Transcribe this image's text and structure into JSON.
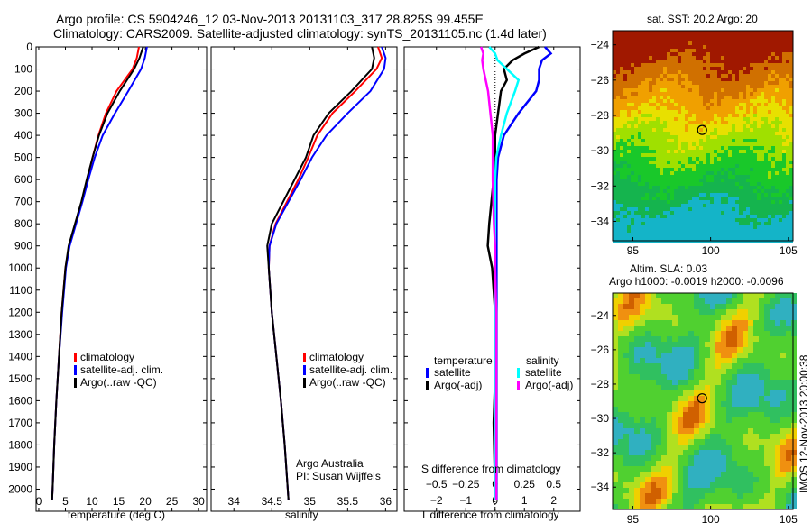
{
  "title_line1": "Argo profile: CS 5904246_12 03-Nov-2013 20131103_317 28.825S 99.455E",
  "title_line2": "Climatology: CARS2009. Satellite-adjusted climatology: synTS_20131105.nc (1.4d later)",
  "colors": {
    "climatology": "#ff0000",
    "satellite": "#0000ff",
    "argo": "#000000",
    "sal_satellite": "#00ffff",
    "sal_argo": "#ff00ff"
  },
  "chart_data": [
    {
      "type": "line",
      "name": "temperature",
      "xlabel": "temperature (deg C)",
      "ylabel": "",
      "xlim": [
        -0.5,
        31.5
      ],
      "ylim": [
        0,
        2100
      ],
      "xticks": [
        0,
        5,
        10,
        15,
        20,
        25,
        30
      ],
      "yticks": [
        0,
        100,
        200,
        300,
        400,
        500,
        600,
        700,
        800,
        900,
        1000,
        1100,
        1200,
        1300,
        1400,
        1500,
        1600,
        1700,
        1800,
        1900,
        2000
      ],
      "legend": [
        "climatology",
        "satellite-adj. clim.",
        "Argo(..raw -QC)"
      ],
      "legend_position": "lower-center",
      "depth": [
        0,
        50,
        100,
        200,
        300,
        400,
        500,
        600,
        700,
        800,
        900,
        1000,
        1200,
        1400,
        1600,
        1800,
        2000,
        2050
      ],
      "series": [
        {
          "name": "climatology",
          "values": [
            18.8,
            18.4,
            17.6,
            14.6,
            12.6,
            11.2,
            10.1,
            9.1,
            8.1,
            6.9,
            5.7,
            5.0,
            4.3,
            3.8,
            3.3,
            2.9,
            2.6,
            2.5
          ]
        },
        {
          "name": "satellite-adj. clim.",
          "values": [
            20.3,
            19.9,
            19.2,
            16.8,
            14.3,
            12.0,
            10.5,
            9.3,
            8.2,
            7.0,
            5.8,
            5.1,
            4.4,
            3.8,
            3.3,
            2.9,
            2.6,
            2.5
          ]
        },
        {
          "name": "Argo(..raw -QC)",
          "values": [
            19.6,
            18.9,
            17.9,
            15.2,
            12.9,
            11.3,
            10.1,
            9.0,
            8.0,
            6.8,
            5.6,
            5.0,
            4.3,
            3.8,
            3.3,
            2.9,
            2.6,
            2.5
          ]
        }
      ]
    },
    {
      "type": "line",
      "name": "salinity",
      "xlabel": "salinity",
      "ylabel": "",
      "xlim": [
        33.7,
        36.15
      ],
      "ylim": [
        0,
        2100
      ],
      "xticks": [
        34,
        34.5,
        35,
        35.5,
        36
      ],
      "legend": [
        "climatology",
        "satellite-adj. clim.",
        "Argo(..raw -QC)"
      ],
      "legend_position": "lower-center",
      "annotation": [
        "Argo Australia",
        "PI: Susan Wijffels"
      ],
      "depth": [
        0,
        50,
        100,
        200,
        300,
        400,
        500,
        600,
        700,
        800,
        900,
        1000,
        1200,
        1400,
        1600,
        1800,
        2000,
        2050
      ],
      "series": [
        {
          "name": "climatology",
          "values": [
            35.9,
            35.95,
            35.88,
            35.6,
            35.3,
            35.1,
            34.98,
            34.85,
            34.7,
            34.55,
            34.47,
            34.46,
            34.5,
            34.56,
            34.62,
            34.67,
            34.71,
            34.72
          ]
        },
        {
          "name": "satellite-adj. clim.",
          "values": [
            35.95,
            36.0,
            35.98,
            35.8,
            35.5,
            35.22,
            35.03,
            34.88,
            34.72,
            34.56,
            34.47,
            34.46,
            34.5,
            34.56,
            34.62,
            34.67,
            34.71,
            34.72
          ]
        },
        {
          "name": "Argo(..raw -QC)",
          "values": [
            35.82,
            35.85,
            35.82,
            35.55,
            35.25,
            35.05,
            34.95,
            34.8,
            34.65,
            34.5,
            34.44,
            34.46,
            34.5,
            34.56,
            34.62,
            34.67,
            34.71,
            34.72
          ]
        }
      ]
    },
    {
      "type": "line",
      "name": "difference",
      "xlabel": "T difference from climatology",
      "x2label": "S difference from climatology",
      "xlim": [
        -3.1,
        2.9
      ],
      "ylim": [
        0,
        2100
      ],
      "xticks": [
        -2,
        -1,
        0,
        1,
        2
      ],
      "x2ticks": [
        -0.5,
        -0.25,
        0,
        0.25,
        0.5
      ],
      "legend_groups": [
        {
          "title": "temperature",
          "items": [
            "satellite",
            "Argo(-adj)"
          ]
        },
        {
          "title": "salinity",
          "items": [
            "satellite",
            "Argo(-adj)"
          ]
        }
      ],
      "depth": [
        0,
        30,
        60,
        100,
        150,
        200,
        300,
        400,
        500,
        600,
        800,
        900,
        1000,
        1200,
        1500,
        1700,
        2000,
        2050
      ],
      "series": [
        {
          "name": "T satellite",
          "unit": "T",
          "values": [
            1.7,
            1.9,
            1.6,
            1.5,
            1.5,
            1.4,
            0.8,
            0.3,
            0.1,
            0.05,
            0.05,
            0.05,
            0.05,
            0.05,
            0.05,
            0.05,
            0.05,
            0.05
          ]
        },
        {
          "name": "T Argo(-adj)",
          "unit": "T",
          "values": [
            1.5,
            1.0,
            0.6,
            0.3,
            0.4,
            0.2,
            0.1,
            0.0,
            0.0,
            -0.05,
            -0.2,
            -0.25,
            -0.1,
            0.0,
            0.0,
            -0.05,
            0.0,
            0.0
          ]
        },
        {
          "name": "S satellite",
          "unit": "S",
          "values": [
            -0.05,
            0.0,
            0.02,
            0.1,
            0.2,
            0.17,
            0.1,
            0.05,
            0.01,
            0.0,
            0.0,
            0.0,
            0.0,
            0.0,
            0.0,
            0.0,
            0.0,
            0.0
          ]
        },
        {
          "name": "S Argo(-adj)",
          "unit": "S",
          "values": [
            -0.12,
            -0.1,
            -0.11,
            -0.1,
            -0.08,
            -0.06,
            -0.04,
            -0.02,
            -0.02,
            -0.02,
            -0.01,
            0.0,
            0.0,
            0.01,
            0.01,
            0.01,
            0.01,
            0.01
          ]
        }
      ]
    },
    {
      "type": "heatmap",
      "name": "sst-map",
      "title": "sat. SST: 20.2  Argo: 20",
      "xlim": [
        93.7,
        105.3
      ],
      "ylim": [
        -35.1,
        -23.2
      ],
      "xticks": [
        95,
        100,
        105
      ],
      "yticks": [
        -24,
        -26,
        -28,
        -30,
        -32,
        -34
      ],
      "marker": [
        99.455,
        -28.825
      ]
    },
    {
      "type": "heatmap",
      "name": "sla-map",
      "title": "Altim. SLA: 0.03",
      "subtitle": "Argo h1000: -0.0019 h2000: -0.0096",
      "xlim": [
        93.7,
        105.3
      ],
      "ylim": [
        -35.3,
        -22.7
      ],
      "xticks": [
        95,
        100,
        105
      ],
      "yticks": [
        -24,
        -26,
        -28,
        -30,
        -32,
        -34
      ],
      "marker": [
        99.455,
        -28.825
      ]
    }
  ],
  "timestamp": "IMOS 12-Nov-2013 20:00:38"
}
